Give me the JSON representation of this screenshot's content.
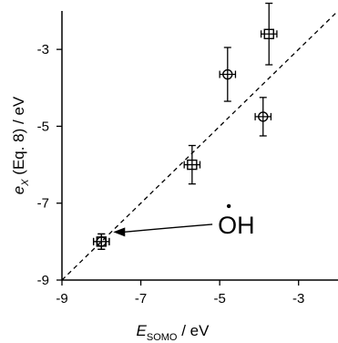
{
  "chart_data": {
    "type": "scatter",
    "xlabel": {
      "base": "E",
      "sub": "SOMO",
      "unit": " / eV"
    },
    "ylabel": {
      "base": "e",
      "sub": "X",
      "rest": " (Eq. 8) / eV"
    },
    "xlim": [
      -9,
      -2
    ],
    "ylim": [
      -9,
      -2
    ],
    "xticks": [
      -9,
      -7,
      -5,
      -3
    ],
    "yticks": [
      -9,
      -7,
      -5,
      -3
    ],
    "xtick_labels": [
      "-9",
      "-7",
      "-5",
      "-3"
    ],
    "ytick_labels": [
      "-9",
      "-7",
      "-5",
      "-3"
    ],
    "grid": false,
    "series": [
      {
        "marker": "circle",
        "points": [
          {
            "x": -8.0,
            "y": -8.0,
            "xerr": 0.2,
            "yerr": 0.2
          },
          {
            "x": -4.8,
            "y": -3.65,
            "xerr": 0.2,
            "yerr": 0.7
          },
          {
            "x": -3.9,
            "y": -4.75,
            "xerr": 0.2,
            "yerr": 0.5
          }
        ]
      },
      {
        "marker": "square",
        "points": [
          {
            "x": -8.0,
            "y": -8.0,
            "xerr": 0.2,
            "yerr": 0.2
          },
          {
            "x": -5.7,
            "y": -6.0,
            "xerr": 0.2,
            "yerr": 0.5
          },
          {
            "x": -3.75,
            "y": -2.6,
            "xerr": 0.2,
            "yerr": 0.8
          }
        ]
      }
    ],
    "reference_line": {
      "style": "dashed",
      "from": [
        -9,
        -9
      ],
      "to": [
        -2,
        -2
      ]
    },
    "annotations": [
      {
        "text": "OH",
        "radical_dot": true,
        "x": -5.0,
        "y": -7.55,
        "arrow_to": [
          -7.7,
          -7.75
        ]
      }
    ]
  }
}
